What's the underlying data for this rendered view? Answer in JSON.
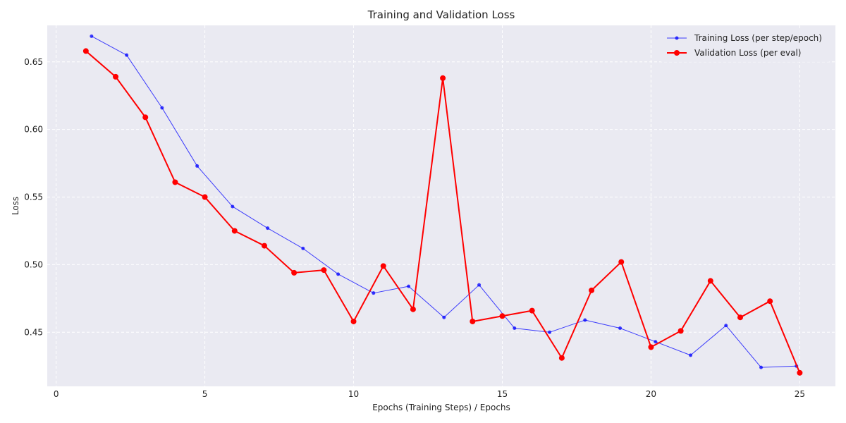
{
  "chart_data": {
    "type": "line",
    "title": "Training and Validation Loss",
    "xlabel": "Epochs (Training Steps) / Epochs",
    "ylabel": "Loss",
    "xlim": [
      -0.3,
      26.2
    ],
    "ylim": [
      0.41,
      0.677
    ],
    "xticks": [
      0,
      5,
      10,
      15,
      20,
      25
    ],
    "yticks": [
      0.45,
      0.5,
      0.55,
      0.6,
      0.65
    ],
    "ytick_labels": [
      "0.45",
      "0.50",
      "0.55",
      "0.60",
      "0.65"
    ],
    "grid": true,
    "legend_position": "top-right",
    "series": [
      {
        "name": "Training Loss (per step/epoch)",
        "color": "#0000ff",
        "marker": "small-dot",
        "x": [
          1.19,
          2.37,
          3.56,
          4.74,
          5.93,
          7.11,
          8.3,
          9.48,
          10.67,
          11.85,
          13.04,
          14.22,
          15.41,
          16.59,
          17.78,
          18.96,
          20.15,
          21.33,
          22.52,
          23.7,
          24.89
        ],
        "y": [
          0.669,
          0.655,
          0.616,
          0.573,
          0.543,
          0.527,
          0.512,
          0.493,
          0.479,
          0.484,
          0.461,
          0.485,
          0.453,
          0.45,
          0.459,
          0.453,
          0.443,
          0.433,
          0.455,
          0.424,
          0.425
        ]
      },
      {
        "name": "Validation Loss (per eval)",
        "color": "#ff0000",
        "marker": "dot",
        "x": [
          1,
          2,
          3,
          4,
          5,
          6,
          7,
          8,
          9,
          10,
          11,
          12,
          13,
          14,
          15,
          16,
          17,
          18,
          19,
          20,
          21,
          22,
          23,
          24,
          25
        ],
        "y": [
          0.658,
          0.639,
          0.609,
          0.561,
          0.55,
          0.525,
          0.514,
          0.494,
          0.496,
          0.458,
          0.499,
          0.467,
          0.638,
          0.458,
          0.462,
          0.466,
          0.431,
          0.481,
          0.502,
          0.439,
          0.451,
          0.488,
          0.461,
          0.473,
          0.42
        ]
      }
    ]
  }
}
